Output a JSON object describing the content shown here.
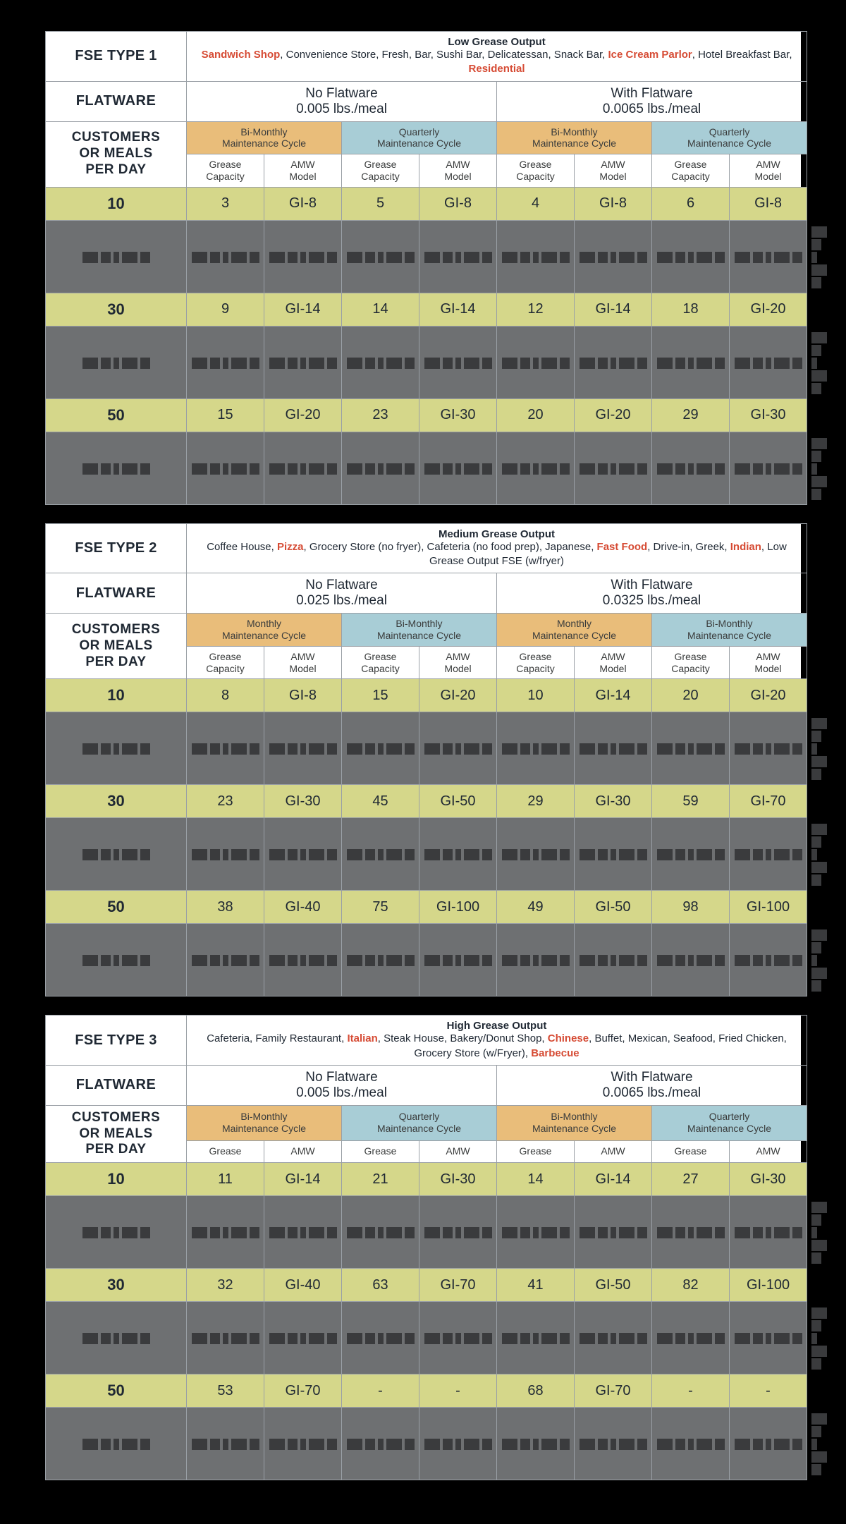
{
  "colors": {
    "olive": "#d5d78a",
    "gray": "#6e7072",
    "orange": "#e9bd7a",
    "blue": "#a8cdd6",
    "red": "#d64b34",
    "border": "#9aa0a6"
  },
  "labels": {
    "flatware": "FLATWARE",
    "customers": "CUSTOMERS OR MEALS PER DAY",
    "grease": "Grease Capacity",
    "amw": "AMW Model"
  },
  "flatware": {
    "none": {
      "title": "No Flatware"
    },
    "with": {
      "title": "With Flatware"
    }
  },
  "blocks": [
    {
      "id": "fse1",
      "type_label": "FSE TYPE 1",
      "output_title": "Low Grease Output",
      "desc_segments": [
        {
          "t": "Sandwich Shop",
          "hl": true
        },
        {
          "t": ", Convenience Store, Fresh, Bar, Sushi Bar, Delicatessan, Snack Bar, "
        },
        {
          "t": "Ice Cream Parlor",
          "hl": true
        },
        {
          "t": ", Hotel Breakfast Bar, "
        },
        {
          "t": "Residential",
          "hl": true
        }
      ],
      "flatware_none": "0.005 lbs./meal",
      "flatware_with": "0.0065 lbs./meal",
      "cycle_a": "Bi-Monthly Maintenance Cycle",
      "cycle_b": "Quarterly Maintenance Cycle",
      "rows": [
        {
          "day": "10",
          "v": [
            "3",
            "GI-8",
            "5",
            "GI-8",
            "4",
            "GI-8",
            "6",
            "GI-8"
          ]
        },
        {
          "day": "30",
          "v": [
            "9",
            "GI-14",
            "14",
            "GI-14",
            "12",
            "GI-14",
            "18",
            "GI-20"
          ]
        },
        {
          "day": "50",
          "v": [
            "15",
            "GI-20",
            "23",
            "GI-30",
            "20",
            "GI-20",
            "29",
            "GI-30"
          ]
        }
      ]
    },
    {
      "id": "fse2",
      "type_label": "FSE TYPE 2",
      "output_title": "Medium Grease Output",
      "desc_segments": [
        {
          "t": "Coffee House, "
        },
        {
          "t": "Pizza",
          "hl": true
        },
        {
          "t": ", Grocery Store (no fryer), Cafeteria (no food prep), Japanese, "
        },
        {
          "t": "Fast Food",
          "hl": true
        },
        {
          "t": ", Drive-in, Greek, "
        },
        {
          "t": "Indian",
          "hl": true
        },
        {
          "t": ", Low Grease Output FSE (w/fryer)"
        }
      ],
      "flatware_none": "0.025 lbs./meal",
      "flatware_with": "0.0325 lbs./meal",
      "cycle_a": "Monthly Maintenance Cycle",
      "cycle_b": "Bi-Monthly Maintenance Cycle",
      "rows": [
        {
          "day": "10",
          "v": [
            "8",
            "GI-8",
            "15",
            "GI-20",
            "10",
            "GI-14",
            "20",
            "GI-20"
          ]
        },
        {
          "day": "30",
          "v": [
            "23",
            "GI-30",
            "45",
            "GI-50",
            "29",
            "GI-30",
            "59",
            "GI-70"
          ]
        },
        {
          "day": "50",
          "v": [
            "38",
            "GI-40",
            "75",
            "GI-100",
            "49",
            "GI-50",
            "98",
            "GI-100"
          ]
        }
      ]
    },
    {
      "id": "fse3",
      "type_label": "FSE TYPE 3",
      "output_title": "High Grease Output",
      "desc_segments": [
        {
          "t": "Cafeteria, Family Restaurant, "
        },
        {
          "t": "Italian",
          "hl": true
        },
        {
          "t": ", Steak House, Bakery/Donut Shop, "
        },
        {
          "t": "Chinese",
          "hl": true
        },
        {
          "t": ", Buffet, Mexican, Seafood, Fried Chicken, Grocery Store (w/Fryer), "
        },
        {
          "t": "Barbecue",
          "hl": true
        }
      ],
      "flatware_none": "0.005 lbs./meal",
      "flatware_with": "0.0065 lbs./meal",
      "cycle_a": "Bi-Monthly Maintenance Cycle",
      "cycle_b": "Quarterly Maintenance Cycle",
      "short_sub": true,
      "rows": [
        {
          "day": "10",
          "v": [
            "11",
            "GI-14",
            "21",
            "GI-30",
            "14",
            "GI-14",
            "27",
            "GI-30"
          ]
        },
        {
          "day": "30",
          "v": [
            "32",
            "GI-40",
            "63",
            "GI-70",
            "41",
            "GI-50",
            "82",
            "GI-100"
          ]
        },
        {
          "day": "50",
          "v": [
            "53",
            "GI-70",
            "-",
            "-",
            "68",
            "GI-70",
            "-",
            "-"
          ]
        }
      ]
    }
  ]
}
